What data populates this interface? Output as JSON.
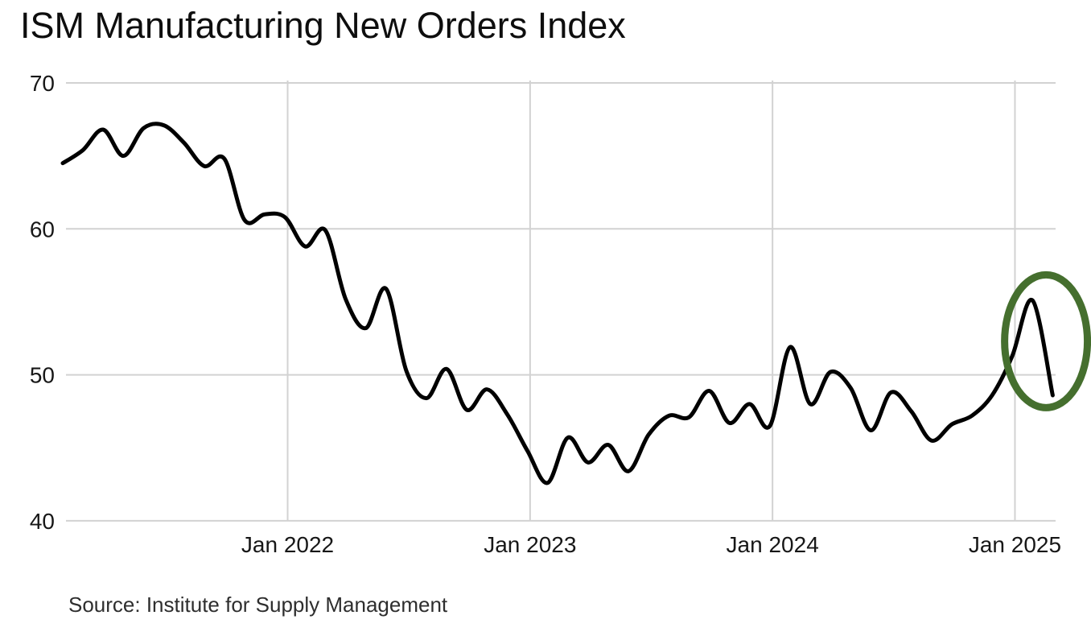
{
  "header": {
    "title": "ISM Manufacturing New Orders Index"
  },
  "footer": {
    "source": "Source: Institute for Supply Management"
  },
  "chart_data": {
    "type": "line",
    "title": "ISM Manufacturing New Orders Index",
    "source": "Source: Institute for Supply Management",
    "series_name": "ISM Manufacturing New Orders Index",
    "xlabel": "",
    "ylabel": "",
    "ylim": [
      40,
      70
    ],
    "grid": true,
    "legend": "none",
    "line_color": "#000000",
    "grid_color": "#d2d2d2",
    "x": [
      "2021-01",
      "2021-02",
      "2021-03",
      "2021-04",
      "2021-05",
      "2021-06",
      "2021-07",
      "2021-08",
      "2021-09",
      "2021-10",
      "2021-11",
      "2021-12",
      "2022-01",
      "2022-02",
      "2022-03",
      "2022-04",
      "2022-05",
      "2022-06",
      "2022-07",
      "2022-08",
      "2022-09",
      "2022-10",
      "2022-11",
      "2022-12",
      "2023-01",
      "2023-02",
      "2023-03",
      "2023-04",
      "2023-05",
      "2023-06",
      "2023-07",
      "2023-08",
      "2023-09",
      "2023-10",
      "2023-11",
      "2023-12",
      "2024-01",
      "2024-02",
      "2024-03",
      "2024-04",
      "2024-05",
      "2024-06",
      "2024-07",
      "2024-08",
      "2024-09",
      "2024-10",
      "2024-11",
      "2024-12",
      "2025-01",
      "2025-02"
    ],
    "values": [
      64.5,
      65.4,
      66.8,
      65.0,
      66.9,
      67.1,
      65.9,
      64.3,
      64.8,
      60.6,
      61.0,
      60.8,
      58.8,
      59.9,
      55.2,
      53.2,
      55.9,
      50.3,
      48.4,
      50.4,
      47.6,
      49.0,
      47.3,
      44.8,
      42.6,
      45.7,
      44.0,
      45.2,
      43.4,
      45.9,
      47.2,
      47.1,
      48.9,
      46.7,
      48.0,
      46.5,
      51.9,
      48.0,
      50.2,
      49.1,
      46.2,
      48.8,
      47.5,
      45.5,
      46.6,
      47.2,
      48.6,
      51.3,
      55.1,
      48.6
    ],
    "y_ticks": [
      70,
      60,
      50,
      40
    ],
    "x_tick_labels": [
      "Jan 2022",
      "Jan 2023",
      "Jan 2024",
      "Jan 2025"
    ],
    "x_tick_month_indices": [
      12,
      24,
      36,
      48
    ],
    "annotation": {
      "type": "ellipse",
      "description": "hand-drawn green oval circling the Jan-Feb 2025 spike and drop",
      "center_month_index": 48.67,
      "center_value": 52.3,
      "rx_months": 2.05,
      "ry_values": 4.55,
      "color": "#456F2E",
      "stroke_width": 9
    }
  }
}
